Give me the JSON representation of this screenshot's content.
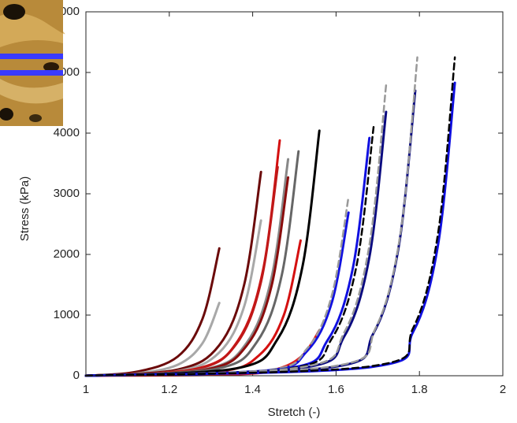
{
  "chart_data": {
    "type": "line",
    "xlabel": "Stretch (-)",
    "ylabel": "Stress (kPa)",
    "xlim": [
      1,
      2
    ],
    "ylim": [
      0,
      6000
    ],
    "xticks": [
      1,
      1.2,
      1.4,
      1.6,
      1.8,
      2
    ],
    "yticks": [
      0,
      1000,
      2000,
      3000,
      4000,
      5000,
      6000
    ],
    "grid": false,
    "series": [
      {
        "color": "#6b0a0a",
        "dashed": false,
        "x": [
          1,
          1.12,
          1.22,
          1.28,
          1.32
        ],
        "values": [
          0,
          63,
          315,
          945,
          2100
        ]
      },
      {
        "color": "#a8a8a8",
        "dashed": false,
        "x": [
          1,
          1.12,
          1.22,
          1.28,
          1.32
        ],
        "values": [
          0,
          36,
          180,
          540,
          1200
        ]
      },
      {
        "color": "#6b0a0a",
        "dashed": false,
        "x": [
          1,
          1.22,
          1.32,
          1.38,
          1.42
        ],
        "values": [
          0,
          101,
          504,
          1512,
          3360
        ]
      },
      {
        "color": "#a8a8a8",
        "dashed": false,
        "x": [
          1,
          1.22,
          1.32,
          1.38,
          1.42
        ],
        "values": [
          0,
          77,
          384,
          1152,
          2560
        ]
      },
      {
        "color": "#d41010",
        "dashed": false,
        "x": [
          1,
          1.265,
          1.365,
          1.425,
          1.465
        ],
        "values": [
          0,
          116,
          582,
          1746,
          3880
        ]
      },
      {
        "color": "#c01818",
        "dashed": false,
        "x": [
          1,
          1.26,
          1.36,
          1.42,
          1.46
        ],
        "values": [
          0,
          103,
          516,
          1548,
          3440
        ]
      },
      {
        "color": "#888888",
        "dashed": false,
        "x": [
          1,
          1.285,
          1.385,
          1.445,
          1.485
        ],
        "values": [
          0,
          107,
          536,
          1607,
          3570
        ]
      },
      {
        "color": "#8a0c0c",
        "dashed": false,
        "x": [
          1,
          1.285,
          1.385,
          1.445,
          1.485
        ],
        "values": [
          0,
          98,
          491,
          1472,
          3270
        ]
      },
      {
        "color": "#d41010",
        "dashed": false,
        "x": [
          1,
          1.315,
          1.415,
          1.475,
          1.515
        ],
        "values": [
          0,
          67,
          335,
          1004,
          2230
        ]
      },
      {
        "color": "#666666",
        "dashed": false,
        "x": [
          1,
          1.31,
          1.41,
          1.47,
          1.51
        ],
        "values": [
          0,
          111,
          555,
          1665,
          3700
        ]
      },
      {
        "color": "#000000",
        "dashed": false,
        "x": [
          1,
          1.36,
          1.46,
          1.52,
          1.56
        ],
        "values": [
          0,
          121,
          606,
          1818,
          4040
        ]
      },
      {
        "color": "#e02020",
        "dashed": false,
        "x": [
          1,
          1.36,
          1.46,
          1.52,
          1.56
        ],
        "values": [
          0,
          23,
          113,
          338,
          750
        ]
      },
      {
        "color": "#1010e0",
        "dashed": false,
        "x": [
          1,
          1.43,
          1.53,
          1.59,
          1.63
        ],
        "values": [
          0,
          81,
          404,
          1211,
          2690
        ]
      },
      {
        "color": "#999999",
        "dashed": true,
        "x": [
          1,
          1.43,
          1.53,
          1.59,
          1.63
        ],
        "values": [
          0,
          89,
          443,
          1328,
          2950
        ]
      },
      {
        "color": "#1010e0",
        "dashed": false,
        "x": [
          1,
          1.48,
          1.58,
          1.64,
          1.68
        ],
        "values": [
          0,
          118,
          588,
          1764,
          3920
        ]
      },
      {
        "color": "#000000",
        "dashed": true,
        "x": [
          1,
          1.49,
          1.59,
          1.65,
          1.69
        ],
        "values": [
          0,
          123,
          615,
          1845,
          4100
        ]
      },
      {
        "color": "#0a0a80",
        "dashed": false,
        "x": [
          1,
          1.52,
          1.62,
          1.68,
          1.72
        ],
        "values": [
          0,
          131,
          653,
          1958,
          4350
        ]
      },
      {
        "color": "#999999",
        "dashed": true,
        "x": [
          1,
          1.52,
          1.62,
          1.68,
          1.72
        ],
        "values": [
          0,
          144,
          719,
          2156,
          4790
        ]
      },
      {
        "color": "#0a0a80",
        "dashed": false,
        "x": [
          1,
          1.59,
          1.69,
          1.75,
          1.79
        ],
        "values": [
          0,
          141,
          705,
          2115,
          4700
        ]
      },
      {
        "color": "#999999",
        "dashed": true,
        "x": [
          1,
          1.595,
          1.695,
          1.755,
          1.795
        ],
        "values": [
          0,
          158,
          788,
          2363,
          5250
        ]
      },
      {
        "color": "#1010e0",
        "dashed": false,
        "x": [
          1,
          1.685,
          1.785,
          1.845,
          1.885
        ],
        "values": [
          0,
          145,
          725,
          2174,
          4830
        ]
      },
      {
        "color": "#000000",
        "dashed": true,
        "x": [
          1,
          1.685,
          1.785,
          1.845,
          1.885
        ],
        "values": [
          0,
          158,
          788,
          2363,
          5250
        ]
      }
    ]
  }
}
